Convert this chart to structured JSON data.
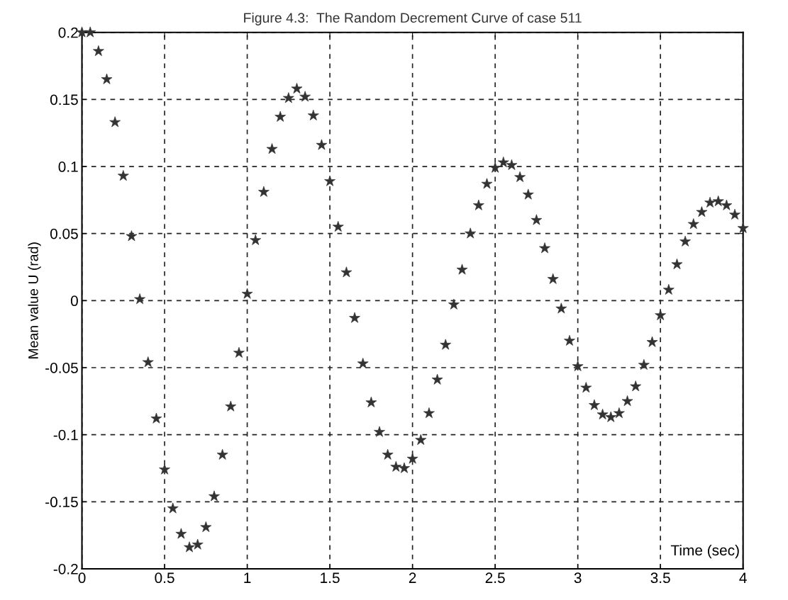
{
  "chart_data": {
    "type": "scatter",
    "title": "Figure 4.3:  The Random Decrement Curve of case 511",
    "xlabel": "Time (sec)",
    "ylabel": "Mean value U (rad)",
    "x": [
      0,
      0.05,
      0.1,
      0.15,
      0.2,
      0.25,
      0.3,
      0.35,
      0.4,
      0.45,
      0.5,
      0.55,
      0.6,
      0.65,
      0.7,
      0.75,
      0.8,
      0.85,
      0.9,
      0.95,
      1.0,
      1.05,
      1.1,
      1.15,
      1.2,
      1.25,
      1.3,
      1.35,
      1.4,
      1.45,
      1.5,
      1.55,
      1.6,
      1.65,
      1.7,
      1.75,
      1.8,
      1.85,
      1.9,
      1.95,
      2.0,
      2.05,
      2.1,
      2.15,
      2.2,
      2.25,
      2.3,
      2.35,
      2.4,
      2.45,
      2.5,
      2.55,
      2.6,
      2.65,
      2.7,
      2.75,
      2.8,
      2.85,
      2.9,
      2.95,
      3.0,
      3.05,
      3.1,
      3.15,
      3.2,
      3.25,
      3.3,
      3.35,
      3.4,
      3.45,
      3.5,
      3.55,
      3.6,
      3.65,
      3.7,
      3.75,
      3.8,
      3.85,
      3.9,
      3.95,
      4.0
    ],
    "series": [
      {
        "color": "#333333",
        "values": [
          0.2,
          0.2,
          0.186,
          0.165,
          0.133,
          0.093,
          0.048,
          0.001,
          -0.046,
          -0.088,
          -0.126,
          -0.155,
          -0.174,
          -0.184,
          -0.182,
          -0.169,
          -0.146,
          -0.115,
          -0.079,
          -0.039,
          0.005,
          0.045,
          0.081,
          0.113,
          0.137,
          0.151,
          0.158,
          0.152,
          0.138,
          0.116,
          0.089,
          0.055,
          0.021,
          -0.013,
          -0.047,
          -0.076,
          -0.098,
          -0.115,
          -0.124,
          -0.125,
          -0.118,
          -0.104,
          -0.084,
          -0.059,
          -0.033,
          -0.003,
          0.023,
          0.05,
          0.071,
          0.087,
          0.099,
          0.103,
          0.101,
          0.092,
          0.079,
          0.06,
          0.039,
          0.016,
          -0.006,
          -0.03,
          -0.049,
          -0.065,
          -0.078,
          -0.085,
          -0.087,
          -0.084,
          -0.075,
          -0.064,
          -0.048,
          -0.031,
          -0.011,
          0.008,
          0.027,
          0.044,
          0.057,
          0.066,
          0.073,
          0.074,
          0.071,
          0.064,
          0.054
        ]
      }
    ],
    "xlim": [
      0,
      4
    ],
    "ylim": [
      -0.2,
      0.2
    ],
    "xticks": [
      0,
      0.5,
      1,
      1.5,
      2,
      2.5,
      3,
      3.5,
      4
    ],
    "yticks": [
      -0.2,
      -0.15,
      -0.1,
      -0.05,
      0,
      0.05,
      0.1,
      0.15,
      0.2
    ],
    "grid": true,
    "marker": "star"
  }
}
